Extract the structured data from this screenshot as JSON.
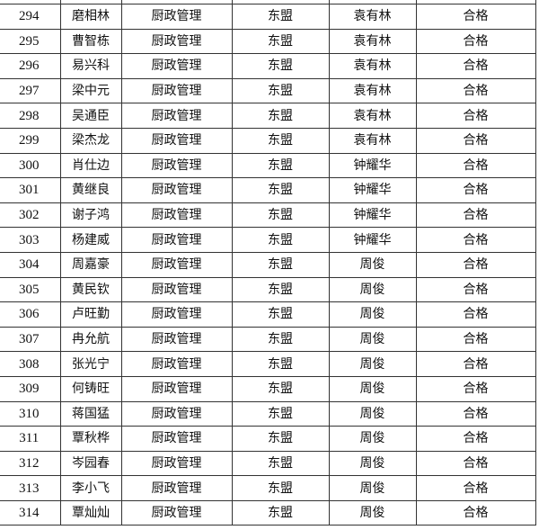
{
  "rows": [
    {
      "no": "294",
      "name": "磨相林",
      "major": "厨政管理",
      "unit": "东盟",
      "teacher": "袁有林",
      "result": "合格"
    },
    {
      "no": "295",
      "name": "曹智栋",
      "major": "厨政管理",
      "unit": "东盟",
      "teacher": "袁有林",
      "result": "合格"
    },
    {
      "no": "296",
      "name": "易兴科",
      "major": "厨政管理",
      "unit": "东盟",
      "teacher": "袁有林",
      "result": "合格"
    },
    {
      "no": "297",
      "name": "梁中元",
      "major": "厨政管理",
      "unit": "东盟",
      "teacher": "袁有林",
      "result": "合格"
    },
    {
      "no": "298",
      "name": "吴通臣",
      "major": "厨政管理",
      "unit": "东盟",
      "teacher": "袁有林",
      "result": "合格"
    },
    {
      "no": "299",
      "name": "梁杰龙",
      "major": "厨政管理",
      "unit": "东盟",
      "teacher": "袁有林",
      "result": "合格"
    },
    {
      "no": "300",
      "name": "肖仕边",
      "major": "厨政管理",
      "unit": "东盟",
      "teacher": "钟耀华",
      "result": "合格"
    },
    {
      "no": "301",
      "name": "黄继良",
      "major": "厨政管理",
      "unit": "东盟",
      "teacher": "钟耀华",
      "result": "合格"
    },
    {
      "no": "302",
      "name": "谢子鸿",
      "major": "厨政管理",
      "unit": "东盟",
      "teacher": "钟耀华",
      "result": "合格"
    },
    {
      "no": "303",
      "name": "杨建威",
      "major": "厨政管理",
      "unit": "东盟",
      "teacher": "钟耀华",
      "result": "合格"
    },
    {
      "no": "304",
      "name": "周嘉豪",
      "major": "厨政管理",
      "unit": "东盟",
      "teacher": "周俊",
      "result": "合格"
    },
    {
      "no": "305",
      "name": "黄民钦",
      "major": "厨政管理",
      "unit": "东盟",
      "teacher": "周俊",
      "result": "合格"
    },
    {
      "no": "306",
      "name": "卢旺勤",
      "major": "厨政管理",
      "unit": "东盟",
      "teacher": "周俊",
      "result": "合格"
    },
    {
      "no": "307",
      "name": "冉允航",
      "major": "厨政管理",
      "unit": "东盟",
      "teacher": "周俊",
      "result": "合格"
    },
    {
      "no": "308",
      "name": "张光宁",
      "major": "厨政管理",
      "unit": "东盟",
      "teacher": "周俊",
      "result": "合格"
    },
    {
      "no": "309",
      "name": "何铸旺",
      "major": "厨政管理",
      "unit": "东盟",
      "teacher": "周俊",
      "result": "合格"
    },
    {
      "no": "310",
      "name": "蒋国猛",
      "major": "厨政管理",
      "unit": "东盟",
      "teacher": "周俊",
      "result": "合格"
    },
    {
      "no": "311",
      "name": "覃秋桦",
      "major": "厨政管理",
      "unit": "东盟",
      "teacher": "周俊",
      "result": "合格"
    },
    {
      "no": "312",
      "name": "岑园春",
      "major": "厨政管理",
      "unit": "东盟",
      "teacher": "周俊",
      "result": "合格"
    },
    {
      "no": "313",
      "name": "李小飞",
      "major": "厨政管理",
      "unit": "东盟",
      "teacher": "周俊",
      "result": "合格"
    },
    {
      "no": "314",
      "name": "覃灿灿",
      "major": "厨政管理",
      "unit": "东盟",
      "teacher": "周俊",
      "result": "合格"
    }
  ]
}
